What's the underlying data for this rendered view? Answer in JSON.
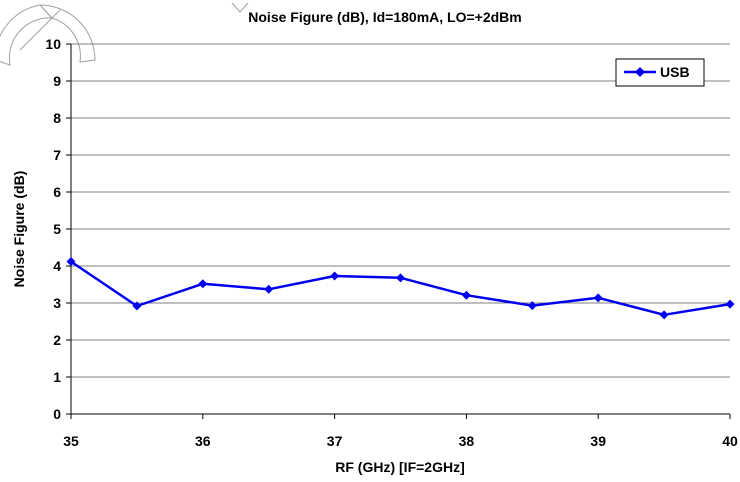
{
  "chart_data": {
    "type": "line",
    "title": "Noise Figure (dB), Id=180mA, LO=+2dBm",
    "xlabel": "RF (GHz) [IF=2GHz]",
    "ylabel": "Noise Figure (dB)",
    "xlim": [
      35,
      40
    ],
    "ylim": [
      0,
      10
    ],
    "x_ticks": [
      35,
      36,
      37,
      38,
      39,
      40
    ],
    "y_ticks": [
      0,
      1,
      2,
      3,
      4,
      5,
      6,
      7,
      8,
      9,
      10
    ],
    "grid": "horizontal",
    "legend_position": "top-right",
    "series": [
      {
        "name": "USB",
        "color": "#0000ee",
        "marker": "diamond",
        "x": [
          35,
          35.5,
          36,
          36.5,
          37,
          37.5,
          38,
          38.5,
          39,
          39.5,
          40
        ],
        "y": [
          4.12,
          2.92,
          3.52,
          3.37,
          3.73,
          3.68,
          3.21,
          2.93,
          3.14,
          2.68,
          2.97
        ]
      }
    ]
  }
}
